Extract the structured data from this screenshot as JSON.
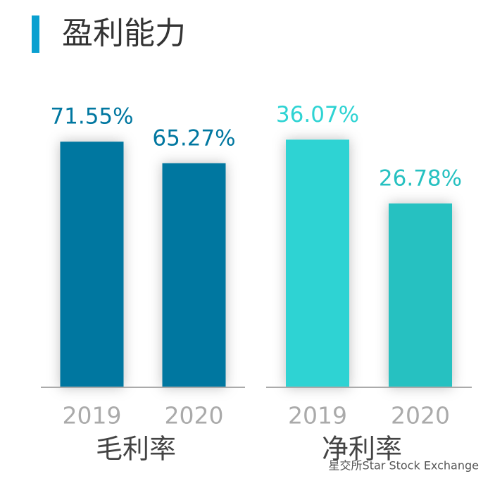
{
  "header": {
    "title": "盈利能力"
  },
  "chart_data": [
    {
      "type": "bar",
      "title": "毛利率",
      "categories": [
        "2019",
        "2020"
      ],
      "values": [
        71.55,
        65.27
      ],
      "value_labels": [
        "71.55%",
        "65.27%"
      ],
      "colors": [
        "#0077a0",
        "#0077a0"
      ],
      "ylim": [
        0,
        80
      ]
    },
    {
      "type": "bar",
      "title": "净利率",
      "categories": [
        "2019",
        "2020"
      ],
      "values": [
        36.07,
        26.78
      ],
      "value_labels": [
        "36.07%",
        "26.78%"
      ],
      "colors": [
        "#2ed3d3",
        "#27c1c1"
      ],
      "ylim": [
        0,
        40
      ]
    }
  ],
  "watermark": "星交所Star Stock Exchange"
}
